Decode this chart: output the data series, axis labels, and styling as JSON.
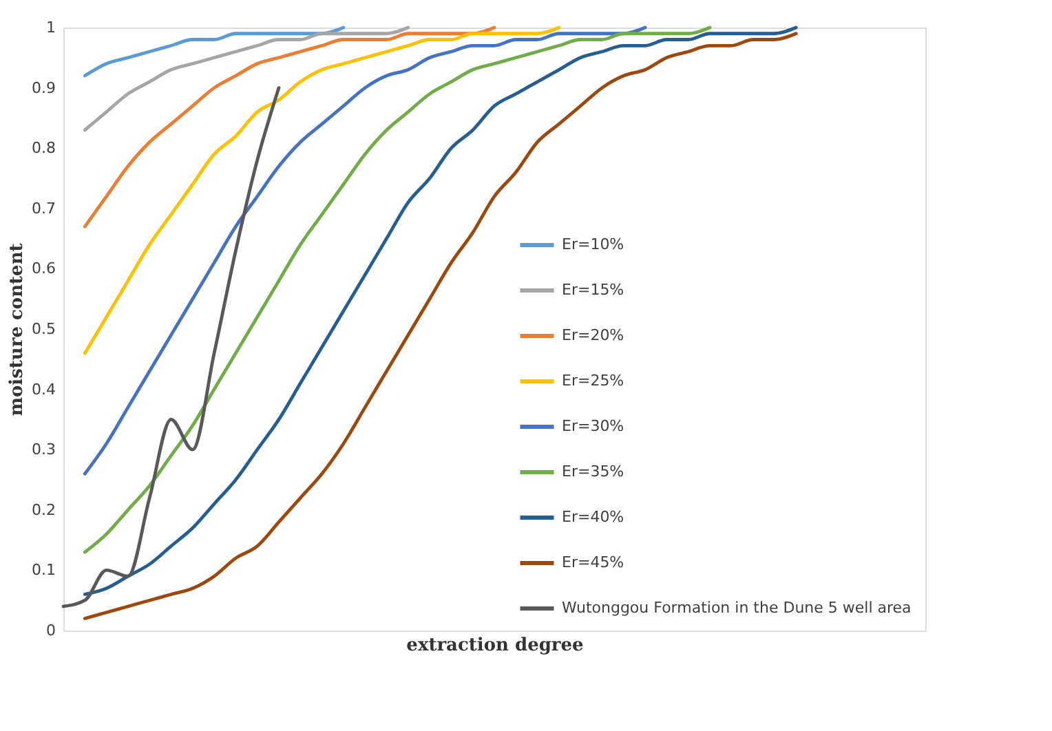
{
  "chart_data": {
    "type": "line",
    "xlabel": "extraction degree",
    "ylabel": "moisture content",
    "categories": [
      null,
      null,
      null,
      null,
      null,
      null,
      null,
      null,
      null,
      null,
      null,
      null,
      null,
      null,
      null,
      null,
      null,
      null,
      null,
      null,
      null,
      null,
      null,
      null,
      null,
      null,
      null,
      null,
      null,
      null,
      null,
      null,
      null,
      null,
      null,
      null,
      null,
      null,
      null,
      null,
      null
    ],
    "series": [
      {
        "name": "Er=10%",
        "color": "#5b9bd5",
        "values": [
          null,
          0.92,
          0.94,
          0.95,
          0.96,
          0.97,
          0.98,
          0.98,
          0.99,
          0.99,
          0.99,
          0.99,
          0.99,
          1.0,
          null,
          null,
          null,
          null,
          null,
          null,
          null,
          null,
          null,
          null,
          null,
          null,
          null,
          null,
          null,
          null,
          null,
          null,
          null,
          null,
          null,
          null,
          null,
          null,
          null,
          null,
          null
        ]
      },
      {
        "name": "Er=15%",
        "color": "#a5a5a5",
        "values": [
          null,
          0.83,
          0.86,
          0.89,
          0.91,
          0.93,
          0.94,
          0.95,
          0.96,
          0.97,
          0.98,
          0.98,
          0.99,
          0.99,
          0.99,
          0.99,
          1.0,
          null,
          null,
          null,
          null,
          null,
          null,
          null,
          null,
          null,
          null,
          null,
          null,
          null,
          null,
          null,
          null,
          null,
          null,
          null,
          null,
          null,
          null,
          null,
          null
        ]
      },
      {
        "name": "Er=20%",
        "color": "#ed7d31",
        "values": [
          null,
          0.67,
          0.72,
          0.77,
          0.81,
          0.84,
          0.87,
          0.9,
          0.92,
          0.94,
          0.95,
          0.96,
          0.97,
          0.98,
          0.98,
          0.98,
          0.99,
          0.99,
          0.99,
          0.99,
          1.0,
          null,
          null,
          null,
          null,
          null,
          null,
          null,
          null,
          null,
          null,
          null,
          null,
          null,
          null,
          null,
          null,
          null,
          null,
          null,
          null
        ]
      },
      {
        "name": "Er=25%",
        "color": "#ffc000",
        "values": [
          null,
          0.46,
          0.52,
          0.58,
          0.64,
          0.69,
          0.74,
          0.79,
          0.82,
          0.86,
          0.88,
          0.91,
          0.93,
          0.94,
          0.95,
          0.96,
          0.97,
          0.98,
          0.98,
          0.99,
          0.99,
          0.99,
          0.99,
          1.0,
          null,
          null,
          null,
          null,
          null,
          null,
          null,
          null,
          null,
          null,
          null,
          null,
          null,
          null,
          null,
          null,
          null
        ]
      },
      {
        "name": "Er=30%",
        "color": "#4472c4",
        "values": [
          null,
          0.26,
          0.31,
          0.37,
          0.43,
          0.49,
          0.55,
          0.61,
          0.67,
          0.72,
          0.77,
          0.81,
          0.84,
          0.87,
          0.9,
          0.92,
          0.93,
          0.95,
          0.96,
          0.97,
          0.97,
          0.98,
          0.98,
          0.99,
          0.99,
          0.99,
          0.99,
          1.0,
          null,
          null,
          null,
          null,
          null,
          null,
          null,
          null,
          null,
          null,
          null,
          null,
          null
        ]
      },
      {
        "name": "Er=35%",
        "color": "#70ad47",
        "values": [
          null,
          0.13,
          0.16,
          0.2,
          0.24,
          0.29,
          0.34,
          0.4,
          0.46,
          0.52,
          0.58,
          0.64,
          0.69,
          0.74,
          0.79,
          0.83,
          0.86,
          0.89,
          0.91,
          0.93,
          0.94,
          0.95,
          0.96,
          0.97,
          0.98,
          0.98,
          0.99,
          0.99,
          0.99,
          0.99,
          1.0,
          null,
          null,
          null,
          null,
          null,
          null,
          null,
          null,
          null,
          null
        ]
      },
      {
        "name": "Er=40%",
        "color": "#255e91",
        "values": [
          null,
          0.06,
          0.07,
          0.09,
          0.11,
          0.14,
          0.17,
          0.21,
          0.25,
          0.3,
          0.35,
          0.41,
          0.47,
          0.53,
          0.59,
          0.65,
          0.71,
          0.75,
          0.8,
          0.83,
          0.87,
          0.89,
          0.91,
          0.93,
          0.95,
          0.96,
          0.97,
          0.97,
          0.98,
          0.98,
          0.99,
          0.99,
          0.99,
          0.99,
          1.0,
          null,
          null,
          null,
          null,
          null,
          null
        ]
      },
      {
        "name": "Er=45%",
        "color": "#9e480e",
        "values": [
          null,
          0.02,
          0.03,
          0.04,
          0.05,
          0.06,
          0.07,
          0.09,
          0.12,
          0.14,
          0.18,
          0.22,
          0.26,
          0.31,
          0.37,
          0.43,
          0.49,
          0.55,
          0.61,
          0.66,
          0.72,
          0.76,
          0.81,
          0.84,
          0.87,
          0.9,
          0.92,
          0.93,
          0.95,
          0.96,
          0.97,
          0.97,
          0.98,
          0.98,
          0.99,
          null,
          null,
          null,
          null,
          null,
          null
        ]
      },
      {
        "name": "Wutonggou Formation in the Dune 5 well area",
        "color": "#595959",
        "values": [
          0.04,
          0.05,
          0.1,
          0.09,
          0.22,
          0.35,
          0.3,
          0.46,
          0.63,
          0.78,
          0.9,
          null,
          null,
          null,
          null,
          null,
          null,
          null,
          null,
          null,
          null,
          null,
          null,
          null,
          null,
          null,
          null,
          null,
          null,
          null,
          null,
          null,
          null,
          null,
          null,
          null,
          null,
          null,
          null,
          null,
          null
        ]
      }
    ],
    "ylim": [
      0,
      1
    ],
    "yticks": [
      0,
      0.1,
      0.2,
      0.3,
      0.4,
      0.5,
      0.6,
      0.7,
      0.8,
      0.9,
      1
    ],
    "tick_labels": "y",
    "grid": false,
    "legend": "bottom right",
    "marker": "none",
    "line_style": "solid"
  }
}
